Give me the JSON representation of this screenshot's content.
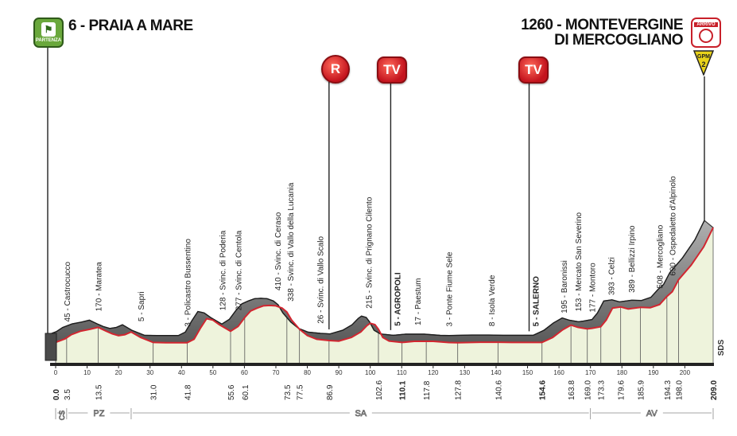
{
  "header": {
    "start_label": "6 - PRAIA A MARE",
    "finish_label_line1": "1260 - MONTEVERGINE",
    "finish_label_line2": "DI MERCOGLIANO"
  },
  "badges": {
    "start_text": "PARTENZA",
    "finish_text": "ARRIVO",
    "gpm_text": "GPM",
    "gpm_category": "2"
  },
  "markers": [
    {
      "label": "R"
    },
    {
      "label": "TV"
    },
    {
      "label": "TV"
    }
  ],
  "side_label": "SDS",
  "colors": {
    "profile_dark": "#3a3a3a",
    "profile_light": "#8a8a8a",
    "route_line": "#d22630",
    "fill": "#eef3dc",
    "marker_red": "#d0202a",
    "start_green": "#6aa83c"
  },
  "chart_data": {
    "type": "area",
    "title": "",
    "xlabel": "",
    "ylabel": "",
    "xlim": [
      0,
      209.0
    ],
    "x_ticks": [
      0,
      10,
      20,
      30,
      40,
      50,
      60,
      70,
      80,
      90,
      100,
      110,
      120,
      130,
      140,
      150,
      160,
      170,
      180,
      190,
      200
    ],
    "profile": {
      "x": [
        0,
        3,
        5,
        8,
        11,
        13.5,
        16,
        18,
        20,
        22,
        24,
        27,
        31,
        35,
        38,
        41.8,
        44,
        46,
        48,
        50,
        52,
        55.6,
        58,
        60.1,
        62,
        64,
        66,
        68,
        70,
        72,
        73.5,
        75,
        77.5,
        80,
        83,
        86.9,
        90,
        94,
        97,
        99,
        100,
        101.5,
        102.6,
        104,
        106,
        110.1,
        114,
        117.8,
        120,
        125,
        127.8,
        135,
        140.6,
        145,
        150,
        154.6,
        158,
        161,
        163.8,
        166,
        169,
        170.5,
        173.3,
        175,
        177,
        179.6,
        182,
        185.9,
        189,
        192,
        194.3,
        196,
        198,
        202,
        206,
        209
      ],
      "elevation": [
        6,
        45,
        90,
        130,
        150,
        170,
        130,
        100,
        80,
        90,
        120,
        60,
        5,
        3,
        3,
        3,
        40,
        160,
        265,
        250,
        200,
        128,
        180,
        277,
        350,
        380,
        405,
        410,
        405,
        380,
        338,
        250,
        150,
        80,
        40,
        26,
        20,
        60,
        120,
        190,
        215,
        200,
        150,
        60,
        20,
        5,
        17,
        17,
        17,
        4,
        3,
        8,
        8,
        5,
        5,
        5,
        60,
        140,
        195,
        170,
        153,
        160,
        177,
        250,
        380,
        393,
        370,
        389,
        385,
        420,
        508,
        560,
        690,
        850,
        1050,
        1260
      ]
    },
    "km_labels": [
      {
        "km": 0.0,
        "label": "0.0",
        "bold": true
      },
      {
        "km": 3.5,
        "label": "3.5",
        "bold": false
      },
      {
        "km": 13.5,
        "label": "13.5",
        "bold": false
      },
      {
        "km": 31.0,
        "label": "31.0",
        "bold": false
      },
      {
        "km": 41.8,
        "label": "41.8",
        "bold": false
      },
      {
        "km": 55.6,
        "label": "55.6",
        "bold": false
      },
      {
        "km": 60.1,
        "label": "60.1",
        "bold": false
      },
      {
        "km": 73.5,
        "label": "73.5",
        "bold": false
      },
      {
        "km": 77.5,
        "label": "77.5",
        "bold": false
      },
      {
        "km": 86.9,
        "label": "86.9",
        "bold": false
      },
      {
        "km": 102.6,
        "label": "102.6",
        "bold": false
      },
      {
        "km": 110.1,
        "label": "110.1",
        "bold": true
      },
      {
        "km": 117.8,
        "label": "117.8",
        "bold": false
      },
      {
        "km": 127.8,
        "label": "127.8",
        "bold": false
      },
      {
        "km": 140.6,
        "label": "140.6",
        "bold": false
      },
      {
        "km": 154.6,
        "label": "154.6",
        "bold": true
      },
      {
        "km": 163.8,
        "label": "163.8",
        "bold": false
      },
      {
        "km": 169.0,
        "label": "169.0",
        "bold": false
      },
      {
        "km": 173.3,
        "label": "173.3",
        "bold": false
      },
      {
        "km": 179.6,
        "label": "179.6",
        "bold": false
      },
      {
        "km": 185.9,
        "label": "185.9",
        "bold": false
      },
      {
        "km": 194.3,
        "label": "194.3",
        "bold": false
      },
      {
        "km": 198.0,
        "label": "198.0",
        "bold": false
      },
      {
        "km": 209.0,
        "label": "209.0",
        "bold": true
      }
    ],
    "places": [
      {
        "km": 3.5,
        "label": "45 - Castrocucco",
        "bold": false
      },
      {
        "km": 13.5,
        "label": "170 - Maratea",
        "bold": false
      },
      {
        "km": 27,
        "label": "5 - Sapri",
        "bold": false
      },
      {
        "km": 41.8,
        "label": "3 - Policastro Bussentino",
        "bold": false
      },
      {
        "km": 53,
        "label": "128 - Svinc. di Poderia",
        "bold": false
      },
      {
        "km": 58,
        "label": "277 - Svinc. di Centola",
        "bold": false
      },
      {
        "km": 70.5,
        "label": "410 - Svinc. di Ceraso",
        "bold": false
      },
      {
        "km": 74.5,
        "label": "338 - Svinc. di Vallo della Lucania",
        "bold": false
      },
      {
        "km": 84,
        "label": "26 - Svinc. di Vallo Scalo",
        "bold": false
      },
      {
        "km": 99.5,
        "label": "215 - Svinc. di Prignano Cilento",
        "bold": false
      },
      {
        "km": 108.5,
        "label": "5 - AGROPOLI",
        "bold": true
      },
      {
        "km": 115,
        "label": "17 - Paestum",
        "bold": false
      },
      {
        "km": 125,
        "label": "3 - Ponte Fiume Sele",
        "bold": false
      },
      {
        "km": 138.5,
        "label": "8 - Isola Verde",
        "bold": false
      },
      {
        "km": 152.5,
        "label": "5 - SALERNO",
        "bold": true
      },
      {
        "km": 161.5,
        "label": "195 - Baronissi",
        "bold": false
      },
      {
        "km": 166,
        "label": "153 - Mercato San Severino",
        "bold": false
      },
      {
        "km": 170.5,
        "label": "177 - Montoro",
        "bold": false
      },
      {
        "km": 176.5,
        "label": "393 - Celzi",
        "bold": false
      },
      {
        "km": 183,
        "label": "389 - Bellizzi Irpino",
        "bold": false
      },
      {
        "km": 192,
        "label": "508 - Mercogliano",
        "bold": false
      },
      {
        "km": 196,
        "label": "690 - Ospedaletto d'Alpinolo",
        "bold": false
      }
    ],
    "regions": [
      {
        "label": "CS",
        "from": 0,
        "to": 3.5
      },
      {
        "label": "PZ",
        "from": 3.5,
        "to": 24
      },
      {
        "label": "SA",
        "from": 24,
        "to": 170
      },
      {
        "label": "AV",
        "from": 170,
        "to": 209
      }
    ],
    "marker_km": [
      86.9,
      106.5,
      150.5
    ]
  }
}
